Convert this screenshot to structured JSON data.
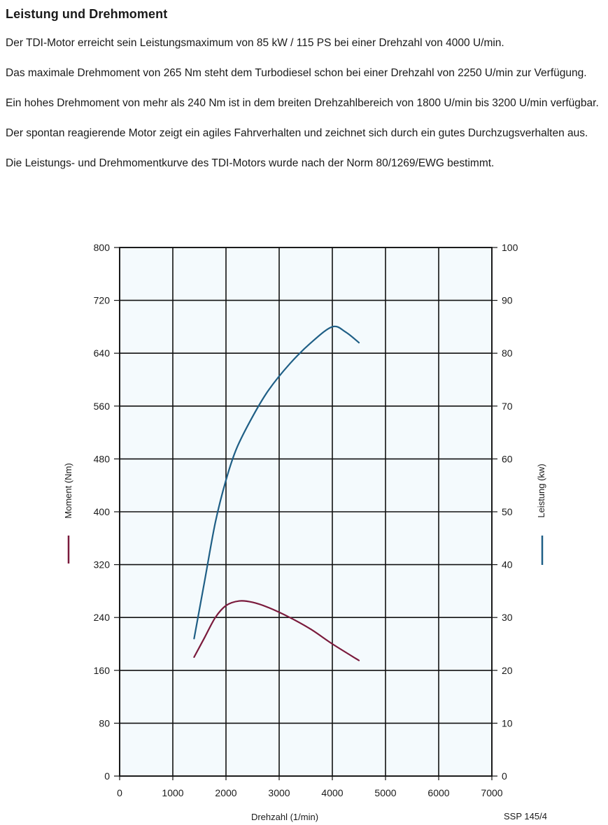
{
  "heading": "Leistung und Drehmoment",
  "paragraphs": [
    "Der TDI-Motor erreicht sein Leistungsmaximum von 85 kW / 115 PS bei einer Drehzahl von 4000 U/min.",
    "Das maximale Drehmoment von 265 Nm steht dem Turbodiesel schon bei einer Drehzahl von 2250 U/min zur Verfügung.",
    "Ein hohes Drehmoment von mehr als 240 Nm ist in dem breiten Drehzahlbereich von 1800 U/min bis 3200 U/min verfügbar.",
    "Der spontan reagierende Motor zeigt ein agiles Fahrverhalten und zeichnet sich durch ein gutes Durchzugsverhalten aus.",
    "Die Leistungs- und Drehmomentkurve des TDI-Motors wurde nach der Norm 80/1269/EWG bestimmt."
  ],
  "figure_ref": "SSP 145/4",
  "chart_data": {
    "type": "line",
    "title": "",
    "xlabel": "Drehzahl (1/min)",
    "ylabel": "Moment (Nm)",
    "y2label": "Leistung (kw)",
    "xlim": [
      0,
      7000
    ],
    "ylim": [
      0,
      800
    ],
    "y2lim": [
      0,
      100
    ],
    "xticks": [
      0,
      1000,
      2000,
      3000,
      4000,
      5000,
      6000,
      7000
    ],
    "yticks": [
      0,
      80,
      160,
      240,
      320,
      400,
      480,
      560,
      640,
      720,
      800
    ],
    "y2ticks": [
      0,
      10,
      20,
      30,
      40,
      50,
      60,
      70,
      80,
      90,
      100
    ],
    "grid": true,
    "series": [
      {
        "name": "Moment (Nm)",
        "axis": "left",
        "color": "#7a1a3c",
        "x": [
          1400,
          1600,
          1800,
          2000,
          2250,
          2500,
          2800,
          3200,
          3600,
          4000,
          4500
        ],
        "y": [
          180,
          210,
          240,
          258,
          265,
          263,
          255,
          240,
          222,
          200,
          175
        ]
      },
      {
        "name": "Leistung (kw)",
        "axis": "right",
        "color": "#1f5f86",
        "x": [
          1400,
          1600,
          1800,
          2000,
          2200,
          2500,
          2800,
          3200,
          3600,
          4000,
          4250,
          4500
        ],
        "y": [
          26,
          37,
          48,
          56,
          62,
          68,
          73,
          78,
          82,
          85,
          84,
          82
        ]
      }
    ]
  }
}
